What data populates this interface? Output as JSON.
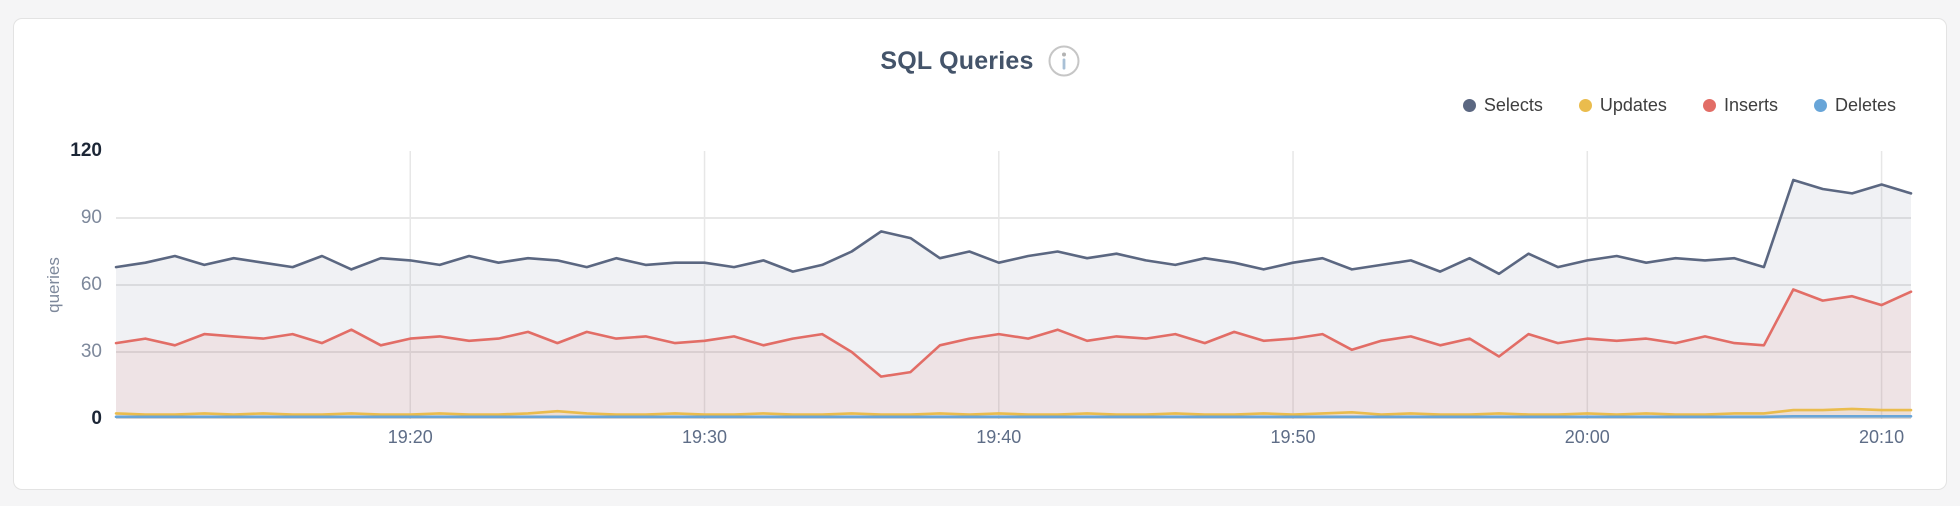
{
  "header": {
    "title": "SQL Queries"
  },
  "chart_data": {
    "type": "area",
    "title": "SQL Queries",
    "ylabel": "queries",
    "ylim": [
      0,
      120
    ],
    "y_ticks": [
      120,
      90,
      60,
      30,
      0
    ],
    "x_domain_minutes": [
      0,
      61
    ],
    "x_ticks": [
      {
        "label": "19:20",
        "minute": 10
      },
      {
        "label": "19:30",
        "minute": 20
      },
      {
        "label": "19:40",
        "minute": 30
      },
      {
        "label": "19:50",
        "minute": 40
      },
      {
        "label": "20:00",
        "minute": 50
      },
      {
        "label": "20:10",
        "minute": 60
      }
    ],
    "grid": true,
    "legend_position": "top-right",
    "colors": {
      "grid": "#e7e7e7",
      "title": "#44546a",
      "axis_text": "#7d889b",
      "axis_text_extreme": "#1c2636",
      "x_axis_text": "#5e6d87"
    },
    "series": [
      {
        "name": "Selects",
        "color": "#5b6781",
        "fill_opacity": 0.09,
        "values": [
          68,
          70,
          73,
          69,
          72,
          70,
          68,
          73,
          67,
          72,
          71,
          69,
          73,
          70,
          72,
          71,
          68,
          72,
          69,
          70,
          70,
          68,
          71,
          66,
          69,
          75,
          84,
          81,
          72,
          75,
          70,
          73,
          75,
          72,
          74,
          71,
          69,
          72,
          70,
          67,
          70,
          72,
          67,
          69,
          71,
          66,
          72,
          65,
          74,
          68,
          71,
          73,
          70,
          72,
          71,
          72,
          68,
          107,
          103,
          101,
          105,
          101
        ]
      },
      {
        "name": "Updates",
        "color": "#eabc4d",
        "fill_opacity": 0.1,
        "values": [
          2.5,
          2,
          2,
          2.5,
          2,
          2.5,
          2,
          2,
          2.5,
          2,
          2,
          2.5,
          2,
          2,
          2.5,
          3.5,
          2.5,
          2,
          2,
          2.5,
          2,
          2,
          2.5,
          2,
          2,
          2.5,
          2,
          2,
          2.5,
          2,
          2.5,
          2,
          2,
          2.5,
          2,
          2,
          2.5,
          2,
          2,
          2.5,
          2,
          2.5,
          3,
          2,
          2.5,
          2,
          2,
          2.5,
          2,
          2,
          2.5,
          2,
          2.5,
          2,
          2,
          2.5,
          2.5,
          4,
          4,
          4.5,
          4,
          4
        ]
      },
      {
        "name": "Inserts",
        "color": "#e26d66",
        "fill_opacity": 0.1,
        "values": [
          34,
          36,
          33,
          38,
          37,
          36,
          38,
          34,
          40,
          33,
          36,
          37,
          35,
          36,
          39,
          34,
          39,
          36,
          37,
          34,
          35,
          37,
          33,
          36,
          38,
          30,
          19,
          21,
          33,
          36,
          38,
          36,
          40,
          35,
          37,
          36,
          38,
          34,
          39,
          35,
          36,
          38,
          31,
          35,
          37,
          33,
          36,
          28,
          38,
          34,
          36,
          35,
          36,
          34,
          37,
          34,
          33,
          58,
          53,
          55,
          51,
          57
        ]
      },
      {
        "name": "Deletes",
        "color": "#68a5d8",
        "fill_opacity": 0.12,
        "values": [
          1,
          1,
          1,
          1,
          1,
          1,
          1,
          1,
          1,
          1,
          1,
          1,
          1,
          1,
          1,
          1,
          1,
          1,
          1,
          1,
          1,
          1,
          1,
          1,
          1,
          1,
          1,
          1,
          1,
          1,
          1,
          1,
          1,
          1,
          1,
          1,
          1,
          1,
          1,
          1,
          1,
          1,
          1,
          1,
          1,
          1,
          1,
          1,
          1,
          1,
          1,
          1,
          1,
          1,
          1,
          1,
          1,
          1.2,
          1.2,
          1.2,
          1.2,
          1.2
        ]
      }
    ]
  }
}
